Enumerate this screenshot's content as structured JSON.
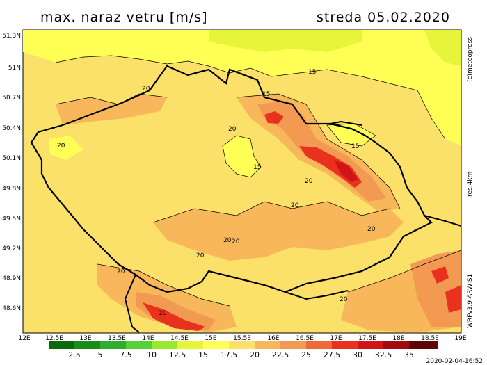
{
  "header": {
    "title": "max. naraz vetru [m/s]",
    "date": "streda 05.02.2020"
  },
  "axes": {
    "lat_labels": [
      "51.3N",
      "51N",
      "50.7N",
      "50.4N",
      "50.1N",
      "49.8N",
      "49.5N",
      "49.2N",
      "48.9N",
      "48.6N"
    ],
    "lon_labels": [
      "12E",
      "12.5E",
      "13E",
      "13.5E",
      "14E",
      "14.5E",
      "15E",
      "15.5E",
      "16E",
      "16.5E",
      "17E",
      "17.5E",
      "18E",
      "18.5E",
      "19E"
    ]
  },
  "side_labels": {
    "copyright": "(c)meteopress",
    "resolution": "res.4km",
    "model": "WRFv3.9-ARW-S1"
  },
  "contour_labels": [
    "15",
    "15",
    "15",
    "15",
    "20",
    "20",
    "20",
    "20",
    "20",
    "20",
    "20",
    "20",
    "20",
    "20",
    "20",
    "20"
  ],
  "colorbar": {
    "labels": [
      "2.5",
      "5",
      "7.5",
      "10",
      "12.5",
      "15",
      "17.5",
      "20",
      "22.5",
      "25",
      "27.5",
      "30",
      "32.5",
      "35"
    ],
    "colors": [
      "#0a6b0a",
      "#1a8c1a",
      "#2fad2f",
      "#55d135",
      "#9be831",
      "#e6f53a",
      "#ffff55",
      "#fbe06a",
      "#f8b75a",
      "#f29a52",
      "#ec6a3a",
      "#e8321e",
      "#d21318",
      "#a00a10",
      "#5c0505"
    ]
  },
  "footer": {
    "timestamp": "2020-02-04-16:52"
  }
}
